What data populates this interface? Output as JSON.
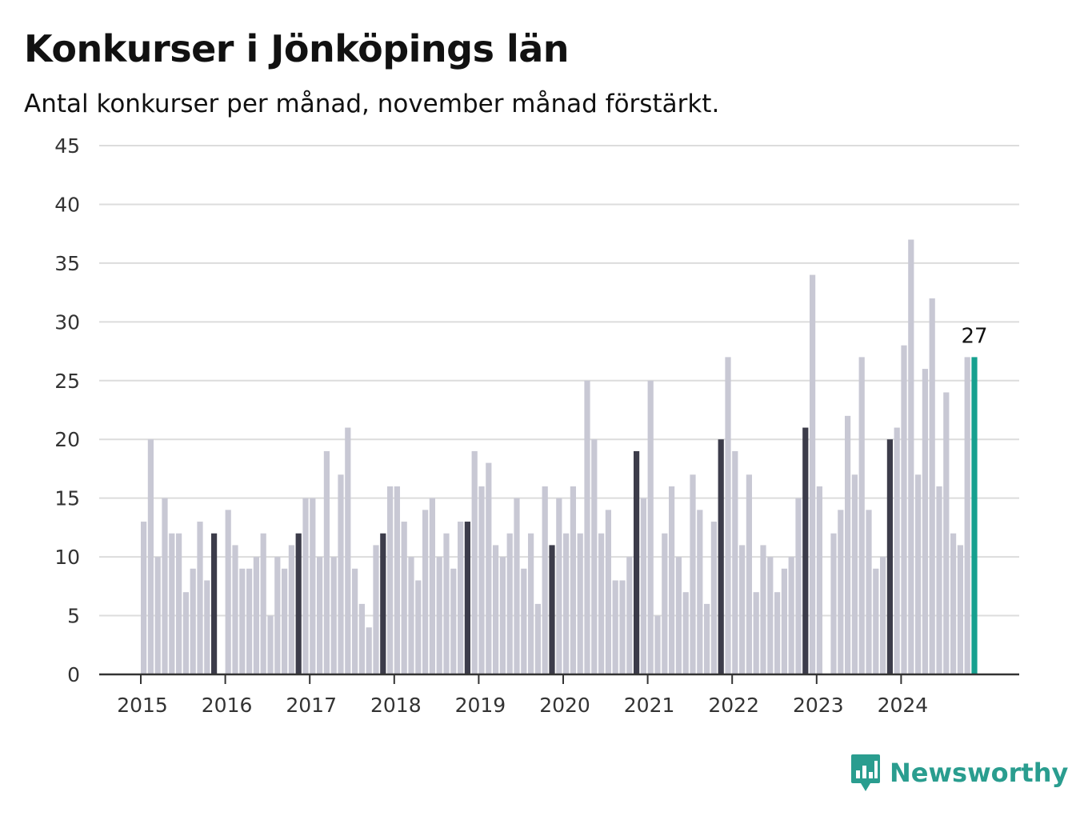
{
  "title": "Konkurser i Jönköpings län",
  "subtitle": "Antal konkurser per månad, november månad förstärkt.",
  "brand": {
    "name": "Newsworthy",
    "icon": "newsworthy-logo-icon",
    "color": "#2a9d8f"
  },
  "colors": {
    "regular": "#c8c8d4",
    "november": "#3c3c4a",
    "latest": "#16a08f",
    "grid": "#dcdcdc",
    "axis": "#333333"
  },
  "chart_data": {
    "type": "bar",
    "title": "Konkurser i Jönköpings län",
    "subtitle": "Antal konkurser per månad, november månad förstärkt.",
    "xlabel": "",
    "ylabel": "",
    "ylim": [
      0,
      45
    ],
    "yticks": [
      0,
      5,
      10,
      15,
      20,
      25,
      30,
      35,
      40,
      45
    ],
    "xtick_labels": [
      "2015",
      "2016",
      "2017",
      "2018",
      "2019",
      "2020",
      "2021",
      "2022",
      "2023",
      "2024"
    ],
    "grid": true,
    "highlight": "november",
    "start": "2015-01",
    "end": "2024-11",
    "values": [
      13,
      20,
      10,
      15,
      12,
      12,
      7,
      9,
      13,
      8,
      12,
      0,
      14,
      11,
      9,
      9,
      10,
      12,
      5,
      10,
      9,
      11,
      12,
      15,
      15,
      10,
      19,
      10,
      17,
      21,
      9,
      6,
      4,
      11,
      12,
      16,
      16,
      13,
      10,
      8,
      14,
      15,
      10,
      12,
      9,
      13,
      13,
      19,
      16,
      18,
      11,
      10,
      12,
      15,
      9,
      12,
      6,
      16,
      11,
      15,
      12,
      16,
      12,
      25,
      20,
      12,
      14,
      8,
      8,
      10,
      19,
      15,
      25,
      5,
      12,
      16,
      10,
      7,
      17,
      14,
      6,
      13,
      20,
      27,
      19,
      11,
      17,
      7,
      11,
      10,
      7,
      9,
      10,
      15,
      21,
      34,
      16,
      0,
      12,
      14,
      22,
      17,
      27,
      14,
      9,
      10,
      20,
      21,
      28,
      37,
      17,
      26,
      32,
      16,
      24,
      12,
      11,
      27,
      27
    ],
    "annotation": {
      "label": "27",
      "value": 27,
      "date": "2024-11"
    }
  }
}
